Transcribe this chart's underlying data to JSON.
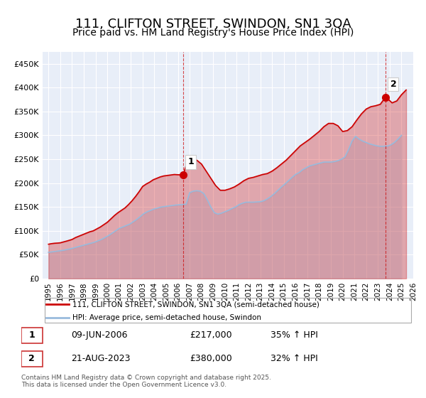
{
  "title": "111, CLIFTON STREET, SWINDON, SN1 3QA",
  "subtitle": "Price paid vs. HM Land Registry's House Price Index (HPI)",
  "title_fontsize": 13,
  "subtitle_fontsize": 10,
  "background_color": "#ffffff",
  "plot_bg_color": "#e8eef8",
  "grid_color": "#ffffff",
  "red_color": "#cc0000",
  "blue_color": "#99bbdd",
  "red_fill": "#dd8888",
  "blue_fill": "#c8d8ee",
  "xlim": [
    1994.5,
    2026.0
  ],
  "ylim": [
    0,
    475000
  ],
  "yticks": [
    0,
    50000,
    100000,
    150000,
    200000,
    250000,
    300000,
    350000,
    400000,
    450000
  ],
  "ytick_labels": [
    "£0",
    "£50K",
    "£100K",
    "£150K",
    "£200K",
    "£250K",
    "£300K",
    "£350K",
    "£400K",
    "£450K"
  ],
  "xticks": [
    1995,
    1996,
    1997,
    1998,
    1999,
    2000,
    2001,
    2002,
    2003,
    2004,
    2005,
    2006,
    2007,
    2008,
    2009,
    2010,
    2011,
    2012,
    2013,
    2014,
    2015,
    2016,
    2017,
    2018,
    2019,
    2020,
    2021,
    2022,
    2023,
    2024,
    2025,
    2026
  ],
  "marker1_x": 2006.44,
  "marker1_y": 217000,
  "marker2_x": 2023.64,
  "marker2_y": 380000,
  "annotation1_label": "1",
  "annotation2_label": "2",
  "legend_line1": "111, CLIFTON STREET, SWINDON, SN1 3QA (semi-detached house)",
  "legend_line2": "HPI: Average price, semi-detached house, Swindon",
  "table_row1_num": "1",
  "table_row1_date": "09-JUN-2006",
  "table_row1_price": "£217,000",
  "table_row1_hpi": "35% ↑ HPI",
  "table_row2_num": "2",
  "table_row2_date": "21-AUG-2023",
  "table_row2_price": "£380,000",
  "table_row2_hpi": "32% ↑ HPI",
  "footer_text": "Contains HM Land Registry data © Crown copyright and database right 2025.\nThis data is licensed under the Open Government Licence v3.0.",
  "red_x": [
    1995.0,
    1995.2,
    1995.5,
    1995.8,
    1996.0,
    1996.3,
    1996.6,
    1997.0,
    1997.3,
    1997.6,
    1997.9,
    1998.2,
    1998.5,
    1998.8,
    1999.1,
    1999.4,
    1999.7,
    2000.0,
    2000.3,
    2000.6,
    2000.9,
    2001.2,
    2001.5,
    2001.8,
    2002.1,
    2002.4,
    2002.7,
    2003.0,
    2003.3,
    2003.6,
    2003.9,
    2004.2,
    2004.5,
    2004.8,
    2005.1,
    2005.4,
    2005.7,
    2006.0,
    2006.44,
    2006.8,
    2007.2,
    2007.6,
    2008.0,
    2008.4,
    2008.8,
    2009.2,
    2009.6,
    2010.0,
    2010.4,
    2010.8,
    2011.2,
    2011.6,
    2012.0,
    2012.4,
    2012.8,
    2013.2,
    2013.6,
    2014.0,
    2014.4,
    2014.8,
    2015.2,
    2015.6,
    2016.0,
    2016.4,
    2016.8,
    2017.2,
    2017.6,
    2018.0,
    2018.4,
    2018.8,
    2019.2,
    2019.6,
    2020.0,
    2020.4,
    2020.8,
    2021.2,
    2021.6,
    2022.0,
    2022.4,
    2022.8,
    2023.2,
    2023.64,
    2023.9,
    2024.2,
    2024.6,
    2025.0,
    2025.4
  ],
  "red_y": [
    72000,
    73000,
    74000,
    74500,
    75000,
    77000,
    79000,
    82000,
    86000,
    89000,
    92000,
    95000,
    98000,
    100000,
    104000,
    108000,
    113000,
    118000,
    125000,
    132000,
    138000,
    143000,
    148000,
    155000,
    163000,
    172000,
    182000,
    193000,
    198000,
    202000,
    207000,
    210000,
    213000,
    215000,
    216000,
    217000,
    218000,
    217500,
    217000,
    245000,
    250000,
    248000,
    240000,
    225000,
    210000,
    195000,
    185000,
    185000,
    188000,
    192000,
    198000,
    205000,
    210000,
    212000,
    215000,
    218000,
    220000,
    225000,
    232000,
    240000,
    248000,
    258000,
    268000,
    278000,
    285000,
    292000,
    300000,
    308000,
    318000,
    325000,
    325000,
    320000,
    308000,
    310000,
    318000,
    332000,
    345000,
    355000,
    360000,
    362000,
    365000,
    380000,
    375000,
    368000,
    372000,
    385000,
    395000
  ],
  "blue_x": [
    1995.0,
    1995.3,
    1995.6,
    1995.9,
    1996.2,
    1996.5,
    1996.8,
    1997.1,
    1997.4,
    1997.7,
    1998.0,
    1998.3,
    1998.6,
    1998.9,
    1999.2,
    1999.5,
    1999.8,
    2000.1,
    2000.4,
    2000.7,
    2001.0,
    2001.3,
    2001.6,
    2001.9,
    2002.2,
    2002.5,
    2002.8,
    2003.1,
    2003.4,
    2003.7,
    2004.0,
    2004.3,
    2004.6,
    2004.9,
    2005.2,
    2005.5,
    2005.8,
    2006.1,
    2006.4,
    2006.7,
    2007.0,
    2007.3,
    2007.6,
    2007.9,
    2008.2,
    2008.5,
    2008.8,
    2009.1,
    2009.4,
    2009.7,
    2010.0,
    2010.3,
    2010.6,
    2010.9,
    2011.2,
    2011.5,
    2011.8,
    2012.1,
    2012.4,
    2012.7,
    2013.0,
    2013.3,
    2013.6,
    2013.9,
    2014.2,
    2014.5,
    2014.8,
    2015.1,
    2015.4,
    2015.7,
    2016.0,
    2016.3,
    2016.6,
    2016.9,
    2017.2,
    2017.5,
    2017.8,
    2018.1,
    2018.4,
    2018.7,
    2019.0,
    2019.3,
    2019.6,
    2019.9,
    2020.2,
    2020.5,
    2020.8,
    2021.1,
    2021.4,
    2021.7,
    2022.0,
    2022.3,
    2022.6,
    2022.9,
    2023.2,
    2023.5,
    2023.8,
    2024.1,
    2024.4,
    2024.7,
    2025.0
  ],
  "blue_y": [
    55000,
    56000,
    57000,
    58000,
    59000,
    60500,
    62000,
    64000,
    66000,
    68000,
    70000,
    72000,
    74000,
    76000,
    79000,
    82000,
    86000,
    90000,
    95000,
    100000,
    105000,
    108000,
    111000,
    114000,
    119000,
    124000,
    130000,
    136000,
    140000,
    143000,
    146000,
    148000,
    150000,
    151000,
    152000,
    153000,
    154000,
    154500,
    155000,
    156000,
    180000,
    183000,
    184000,
    183000,
    178000,
    165000,
    150000,
    138000,
    135000,
    137000,
    140000,
    143000,
    147000,
    150000,
    155000,
    158000,
    160000,
    160000,
    160000,
    160500,
    161000,
    163000,
    167000,
    172000,
    178000,
    185000,
    192000,
    198000,
    205000,
    212000,
    218000,
    222000,
    228000,
    232000,
    236000,
    238000,
    240000,
    242000,
    244000,
    244000,
    244000,
    245000,
    247000,
    250000,
    255000,
    270000,
    288000,
    298000,
    292000,
    288000,
    285000,
    282000,
    280000,
    278000,
    277000,
    277000,
    277500,
    280000,
    285000,
    292000,
    300000
  ]
}
